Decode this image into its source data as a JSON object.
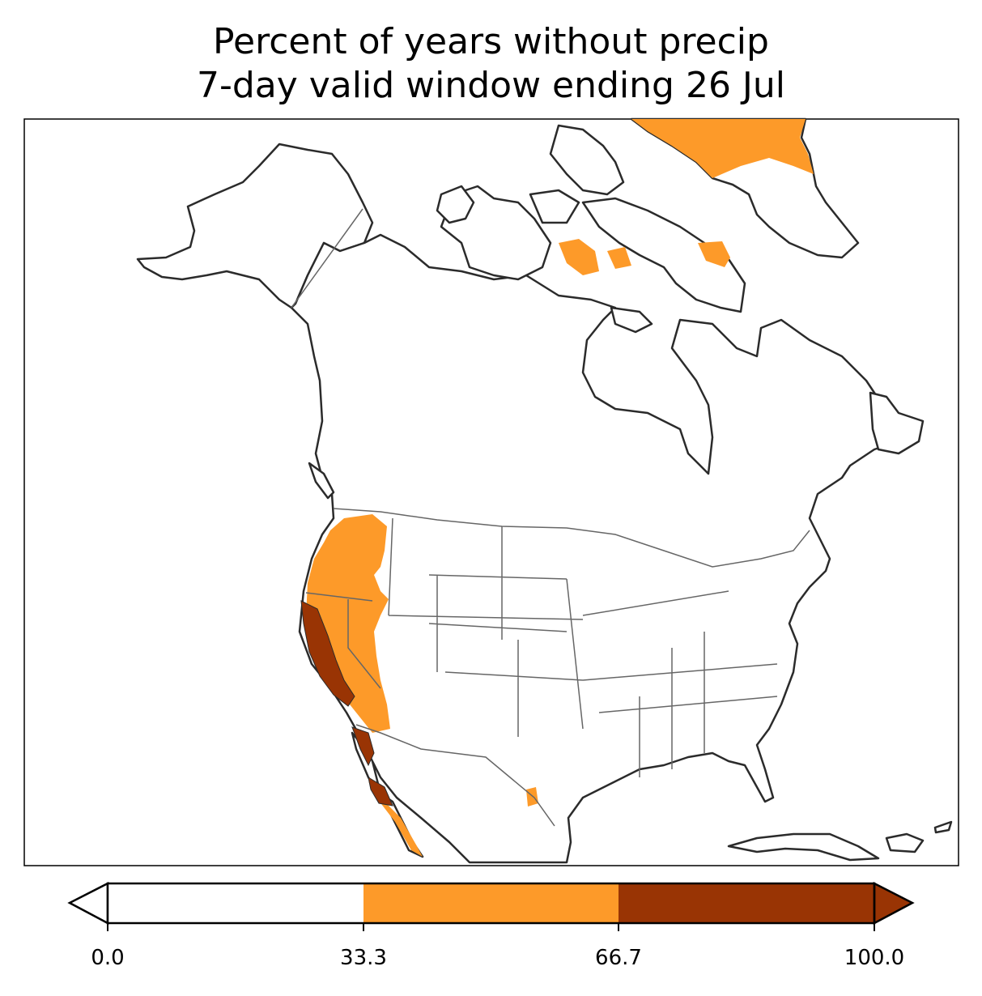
{
  "title": {
    "line1": "Percent of years without precip",
    "line2": "7-day valid window ending 26 Jul"
  },
  "legend": {
    "ticks": [
      "0.0",
      "33.3",
      "66.7",
      "100.0"
    ],
    "bins": [
      {
        "range": [
          0.0,
          33.3
        ],
        "color": "#ffffff"
      },
      {
        "range": [
          33.3,
          66.7
        ],
        "color": "#fd9a29"
      },
      {
        "range": [
          66.7,
          100.0
        ],
        "color": "#993404"
      }
    ],
    "extend": "both"
  },
  "map": {
    "region": "North America",
    "fill_low": "#ffffff",
    "fill_mid": "#fd9a29",
    "fill_high": "#993404",
    "coast_color": "#2b2b2b",
    "border_color": "#666666"
  }
}
